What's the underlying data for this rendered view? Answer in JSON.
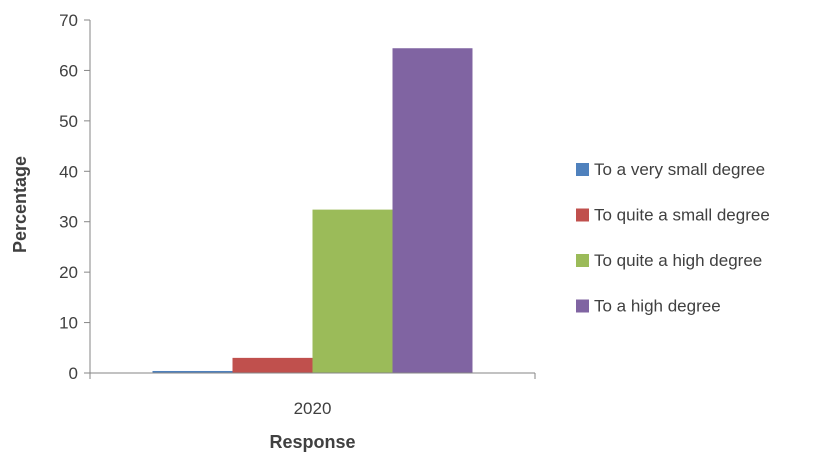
{
  "chart_data": {
    "type": "bar",
    "title": "",
    "xlabel": "Response",
    "ylabel": "Percentage",
    "categories": [
      "2020"
    ],
    "ylim": [
      0,
      70
    ],
    "yticks": [
      0,
      10,
      20,
      30,
      40,
      50,
      60,
      70
    ],
    "grid": false,
    "legend_position": "right",
    "series": [
      {
        "name": "To a very small degree",
        "values": [
          0.4
        ],
        "color": "#4f81bd"
      },
      {
        "name": "To quite a small degree",
        "values": [
          3.0
        ],
        "color": "#c0504d"
      },
      {
        "name": "To quite a high degree",
        "values": [
          32.4
        ],
        "color": "#9bbb59"
      },
      {
        "name": "To a high degree",
        "values": [
          64.4
        ],
        "color": "#8064a2"
      }
    ]
  }
}
